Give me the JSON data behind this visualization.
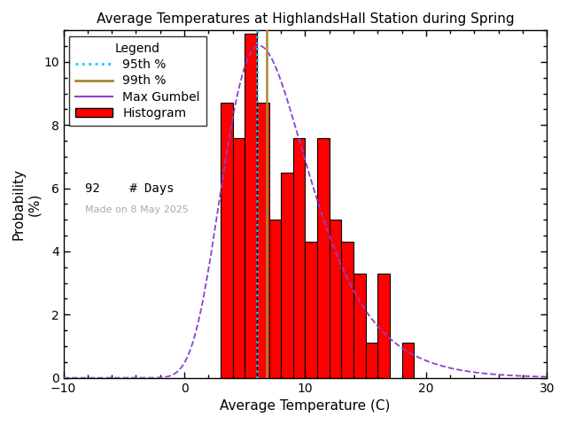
{
  "title": "Average Temperatures at HighlandsHall Station during Spring",
  "xlabel": "Average Temperature (C)",
  "ylabel": "Probability\n(%)",
  "xlim": [
    -10,
    30
  ],
  "ylim": [
    0,
    11
  ],
  "yticks": [
    0,
    2,
    4,
    6,
    8,
    10
  ],
  "xticks": [
    -10,
    0,
    10,
    20,
    30
  ],
  "bar_left_edges": [
    3,
    4,
    5,
    6,
    7,
    8,
    9,
    10,
    11,
    12,
    13,
    14,
    15,
    16,
    17,
    18
  ],
  "bar_heights": [
    8.7,
    7.6,
    10.9,
    8.7,
    5.0,
    6.5,
    7.6,
    4.3,
    7.6,
    5.0,
    4.3,
    3.3,
    1.1,
    3.3,
    0.0,
    1.1
  ],
  "bar_color": "#ff0000",
  "bar_edgecolor": "#000000",
  "gumbel_color": "#8844cc",
  "gumbel_mu": 6.2,
  "gumbel_beta": 3.5,
  "p95_color": "#00ccff",
  "p95_x": 6.0,
  "p99_color": "#aa8833",
  "p99_x": 6.8,
  "n_days": 92,
  "made_on_text": "Made on 8 May 2025",
  "made_on_color": "#aaaaaa",
  "background_color": "#ffffff",
  "title_fontsize": 11,
  "axis_fontsize": 11,
  "tick_labelsize": 10,
  "legend_fontsize": 10
}
